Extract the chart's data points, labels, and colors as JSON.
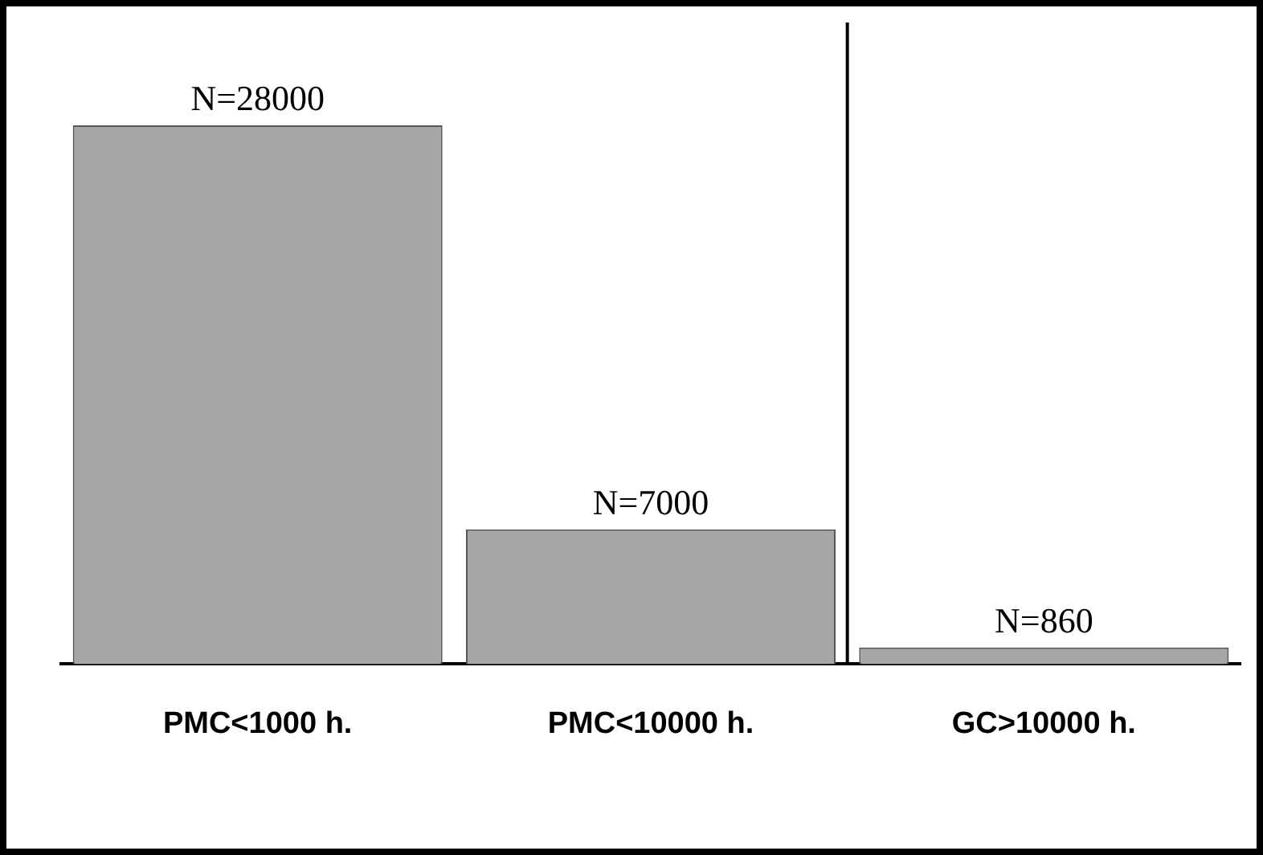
{
  "chart_data": {
    "type": "bar",
    "categories": [
      "PMC<1000 h.",
      "PMC<10000 h.",
      "GC>10000 h."
    ],
    "values": [
      28000,
      7000,
      860
    ],
    "value_labels": [
      "N=28000",
      "N=7000",
      "N=860"
    ],
    "color": "#a6a6a6",
    "grid": false,
    "legend": false,
    "tick_labels": "x"
  }
}
